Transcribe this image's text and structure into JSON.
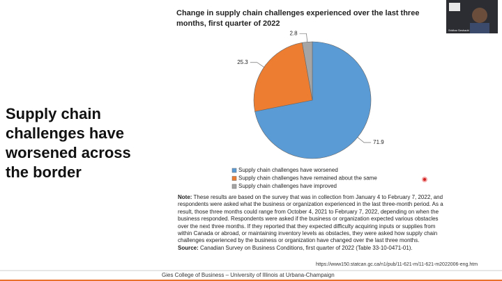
{
  "slide_heading": "Supply chain challenges have worsened across the border",
  "chart_data": {
    "type": "pie",
    "title": [
      "Change in supply chain challenges experienced over the last three",
      "months, first quarter of 2022"
    ],
    "categories": [
      "Supply chain challenges have worsened",
      "Supply chain challenges have remained about the same",
      "Supply chain challenges have improved"
    ],
    "values": [
      71.9,
      25.3,
      2.8
    ],
    "colors": [
      "#5b9bd5",
      "#ed7d31",
      "#a5a5a5"
    ]
  },
  "note_label": "Note:",
  "note": "These results are based on the survey that was in collection from January 4 to February 7, 2022, and respondents were asked what the business or organization experienced in the last three-month period. As a result, those three months could range from October 4, 2021 to February 7, 2022, depending on when the business responded. Respondents were asked if the business or organization expected various obstacles over the next three months. If they reported that they expected difficulty acquiring inputs or supplies from within Canada or abroad, or maintaining inventory levels as obstacles, they were asked how supply chain challenges experienced by the business or organization have changed over the last three months.",
  "source_label": "Source:",
  "source": "Canadian Survey on Business Conditions, first quarter of 2022 (Table 33-10-0471-01).",
  "url": "https://www150.statcan.gc.ca/n1/pub/11-621-m/11-621-m2022006-eng.htm",
  "footer": "Gies College of Business – University of Illinois at Urbana-Champaign",
  "participant_name": "Sridhar Seshadri"
}
